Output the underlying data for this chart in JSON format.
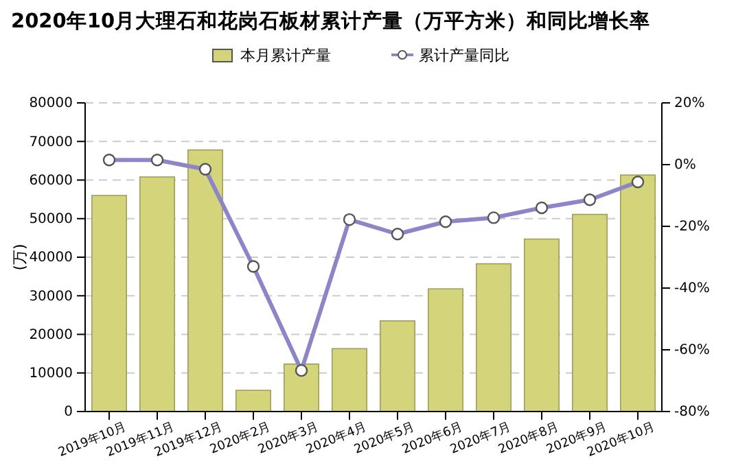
{
  "chart_data": {
    "type": "bar",
    "title": "2020年10月大理石和花岗石板材累计产量（万平方米）和同比增长率",
    "ylabel": "(万)",
    "categories": [
      "2019年10月",
      "2019年11月",
      "2019年12月",
      "2020年2月",
      "2020年3月",
      "2020年4月",
      "2020年5月",
      "2020年6月",
      "2020年7月",
      "2020年8月",
      "2020年9月",
      "2020年10月"
    ],
    "series": [
      {
        "name": "本月累计产量",
        "color": "#d4d47a",
        "values": [
          56000,
          60800,
          67800,
          5500,
          12300,
          16300,
          23500,
          31800,
          38300,
          44700,
          51100,
          61300
        ]
      },
      {
        "name": "累计产量同比",
        "type": "line",
        "axis": "y2",
        "color": "#8c86c8",
        "marker": "circle",
        "values": [
          1.5,
          1.5,
          -1.5,
          -33,
          -66.7,
          -17.8,
          -22.5,
          -18.5,
          -17.2,
          -14,
          -11.4,
          -5.6
        ]
      }
    ],
    "ylim": [
      0,
      80000
    ],
    "yticks": [
      0,
      10000,
      20000,
      30000,
      40000,
      50000,
      60000,
      70000,
      80000
    ],
    "y2lim": [
      -80,
      20
    ],
    "y2ticks": [
      {
        "value": -80,
        "label": "-80%"
      },
      {
        "value": -60,
        "label": "-60%"
      },
      {
        "value": -40,
        "label": "-40%"
      },
      {
        "value": -20,
        "label": "-20%"
      },
      {
        "value": 0,
        "label": "0%"
      },
      {
        "value": 20,
        "label": "20%"
      }
    ],
    "grid": "y",
    "legend": "top"
  }
}
